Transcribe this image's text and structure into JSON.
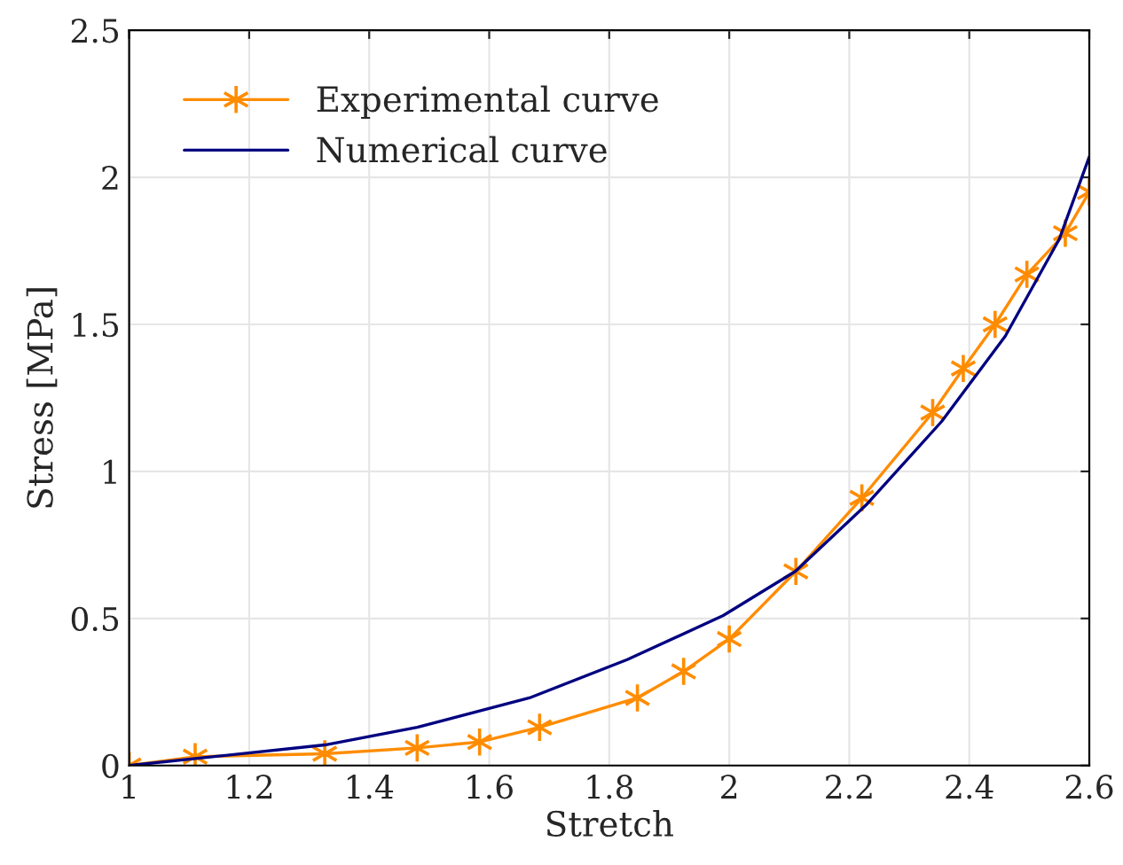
{
  "chart_data": {
    "type": "line",
    "xlabel": "Stretch",
    "ylabel": "Stress [MPa]",
    "xlim": [
      1,
      2.6
    ],
    "xticks": [
      1,
      1.2,
      1.4,
      1.6,
      1.8,
      2,
      2.2,
      2.4,
      2.6
    ],
    "ylim": [
      0,
      2.5
    ],
    "yticks": [
      0,
      0.5,
      1,
      1.5,
      2,
      2.5
    ],
    "grid": true,
    "legend": "top left",
    "series": [
      {
        "name": "Experimental curve",
        "color": "#ff8c00",
        "marker": "cross",
        "x": [
          1.0,
          1.11,
          1.326,
          1.48,
          1.584,
          1.684,
          1.847,
          1.924,
          2.0,
          2.111,
          2.221,
          2.339,
          2.39,
          2.443,
          2.496,
          2.56,
          2.6
        ],
        "values": [
          0,
          0.03,
          0.04,
          0.06,
          0.08,
          0.13,
          0.23,
          0.32,
          0.43,
          0.66,
          0.91,
          1.2,
          1.35,
          1.5,
          1.67,
          1.81,
          1.95
        ]
      },
      {
        "name": "Numerical curve",
        "color": "#000080",
        "marker": "none",
        "x": [
          1.0,
          1.326,
          1.48,
          1.667,
          1.83,
          1.99,
          2.11,
          2.23,
          2.354,
          2.46,
          2.55,
          2.6
        ],
        "values": [
          0,
          0.07,
          0.13,
          0.23,
          0.36,
          0.51,
          0.66,
          0.89,
          1.17,
          1.46,
          1.79,
          2.07
        ]
      }
    ]
  }
}
